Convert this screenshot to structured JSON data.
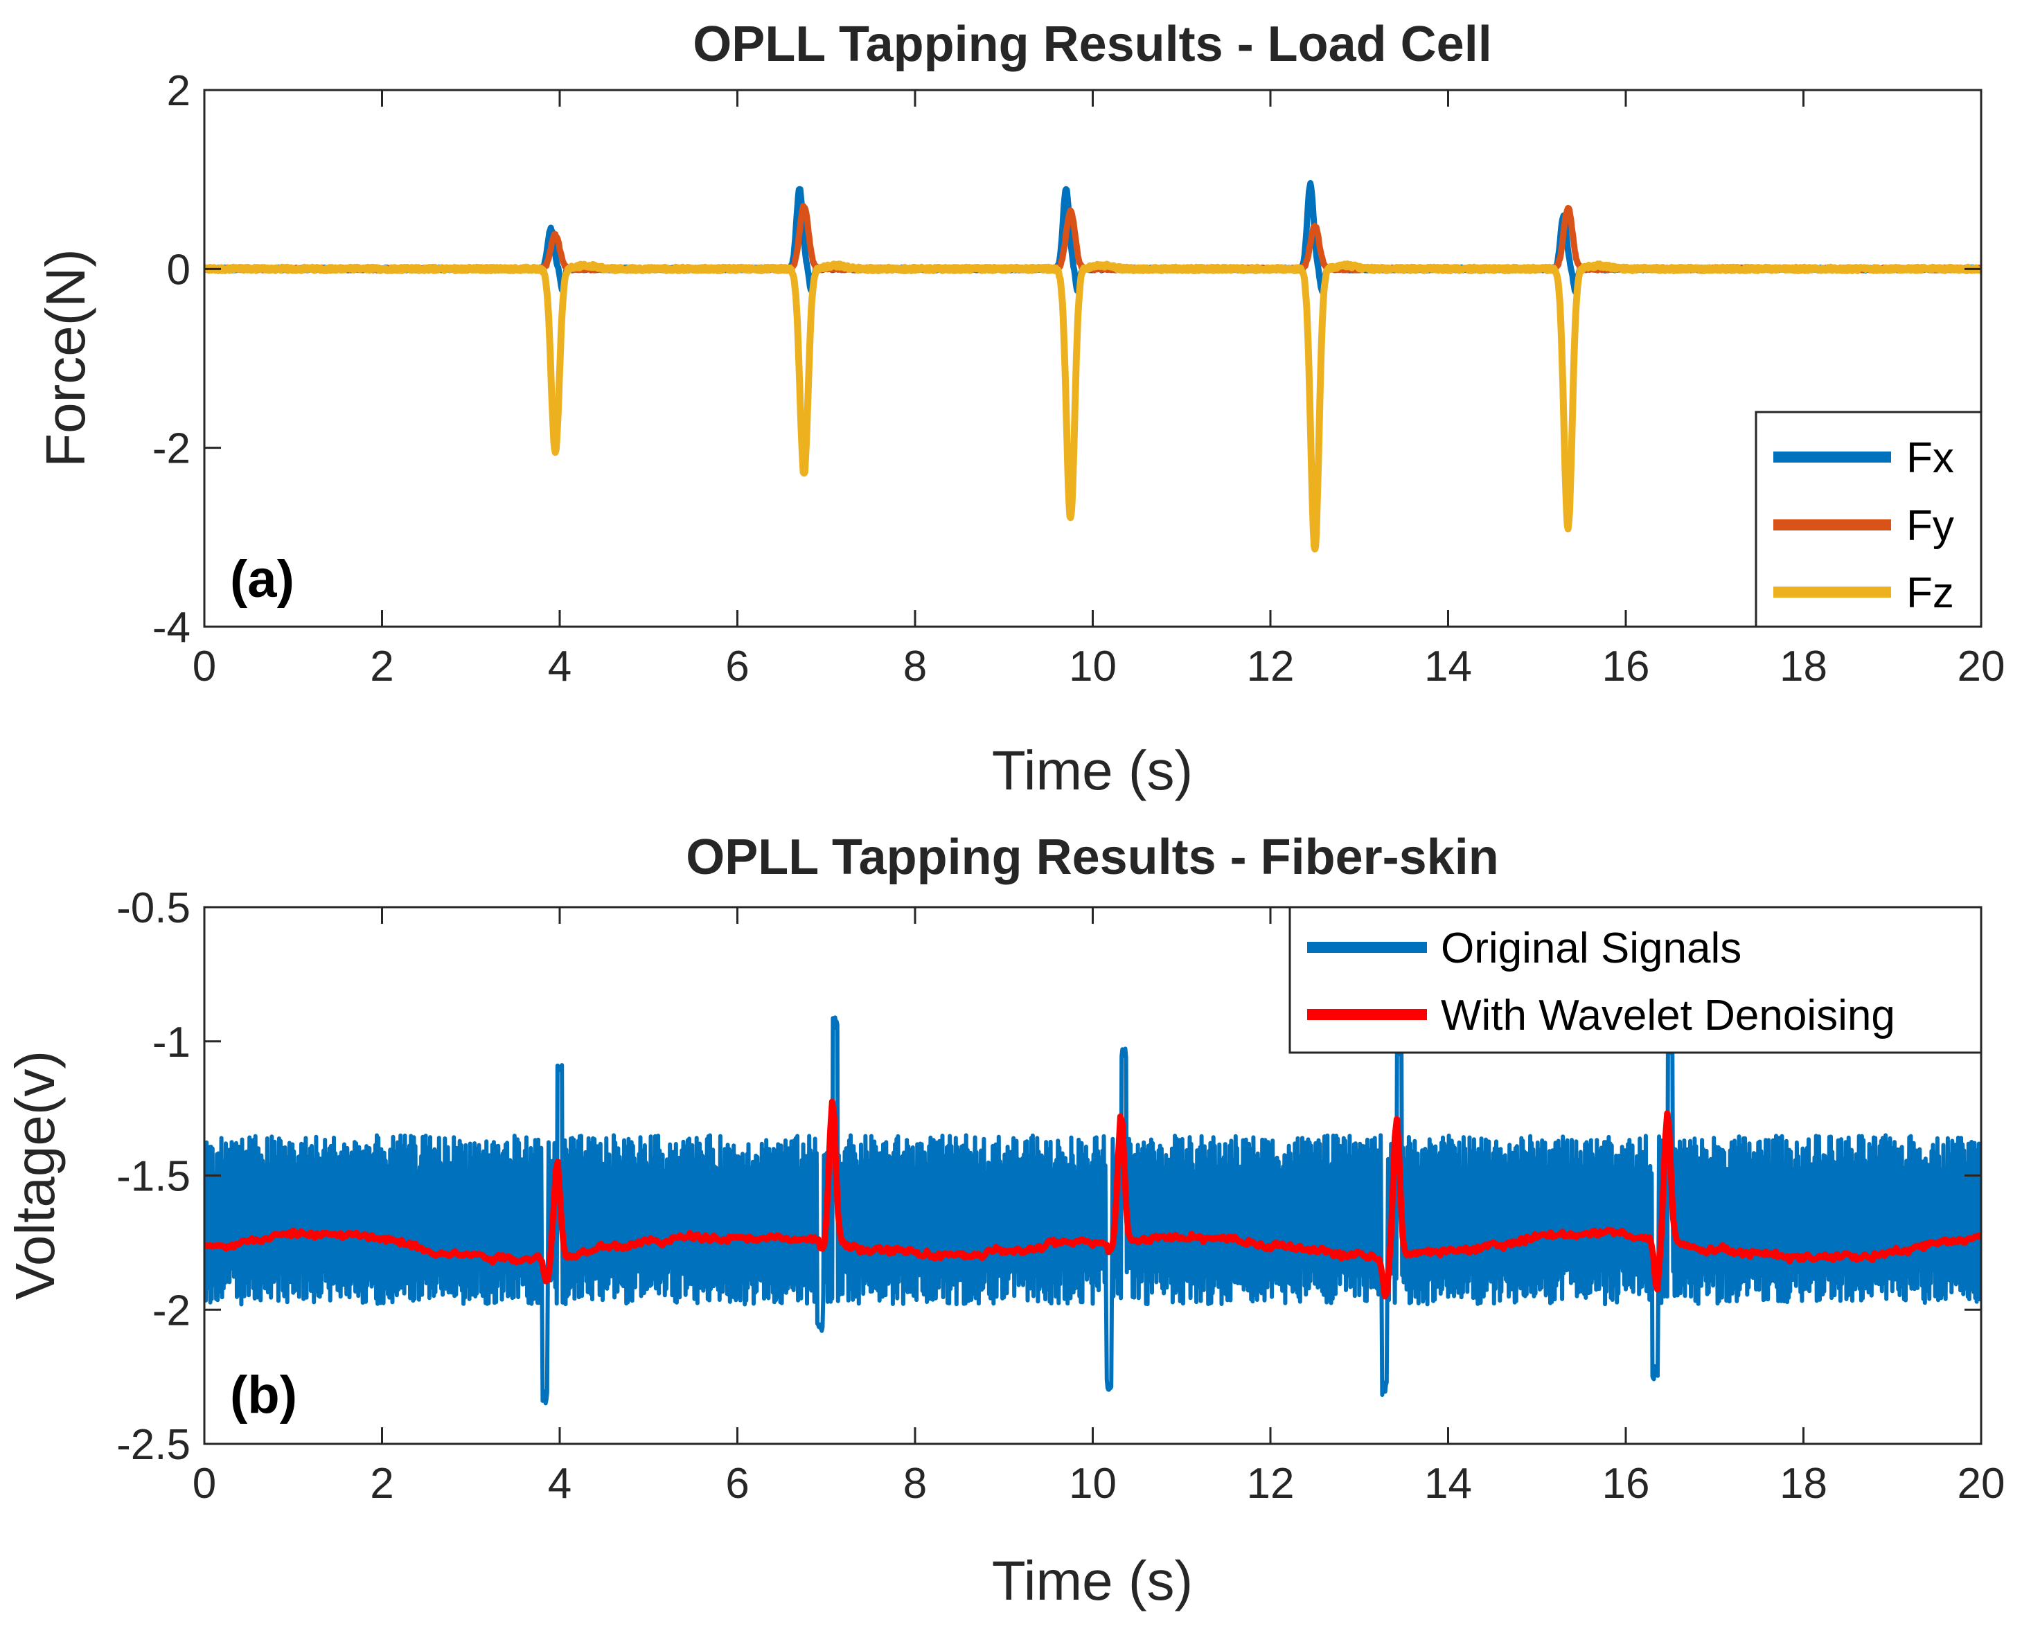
{
  "chart_data": [
    {
      "type": "line",
      "panel_label": "(a)",
      "title": "OPLL Tapping Results - Load Cell",
      "xlabel": "Time (s)",
      "ylabel": "Force(N)",
      "xlim": [
        0,
        20
      ],
      "ylim": [
        -4,
        2
      ],
      "xticks": [
        0,
        2,
        4,
        6,
        8,
        10,
        12,
        14,
        16,
        18,
        20
      ],
      "yticks": [
        -4,
        -2,
        0,
        2
      ],
      "xtick_labels": [
        "0",
        "2",
        "4",
        "6",
        "8",
        "10",
        "12",
        "14",
        "16",
        "18",
        "20"
      ],
      "ytick_labels": [
        "-4",
        "-2",
        "0",
        "2"
      ],
      "legend_position": "bottom-right",
      "tap_times": [
        3.95,
        6.75,
        9.75,
        12.5,
        15.35
      ],
      "series": [
        {
          "name": "Fx",
          "color": "#0072BD",
          "baseline": 0.0,
          "peak_values": [
            0.45,
            0.9,
            0.9,
            0.95,
            0.6
          ]
        },
        {
          "name": "Fy",
          "color": "#D95319",
          "baseline": 0.0,
          "peak_values": [
            0.38,
            0.7,
            0.65,
            0.48,
            0.68
          ]
        },
        {
          "name": "Fz",
          "color": "#EDB120",
          "baseline": 0.0,
          "peak_values": [
            -2.05,
            -2.3,
            -2.8,
            -3.15,
            -2.9
          ]
        }
      ]
    },
    {
      "type": "line",
      "panel_label": "(b)",
      "title": "OPLL Tapping Results - Fiber-skin",
      "xlabel": "Time (s)",
      "ylabel": "Voltage(v)",
      "xlim": [
        0,
        20
      ],
      "ylim": [
        -2.5,
        -0.5
      ],
      "xticks": [
        0,
        2,
        4,
        6,
        8,
        10,
        12,
        14,
        16,
        18,
        20
      ],
      "yticks": [
        -2.5,
        -2,
        -1.5,
        -1,
        -0.5
      ],
      "xtick_labels": [
        "0",
        "2",
        "4",
        "6",
        "8",
        "10",
        "12",
        "14",
        "16",
        "18",
        "20"
      ],
      "ytick_labels": [
        "-2.5",
        "-2",
        "-1.5",
        "-1",
        "-0.5"
      ],
      "legend_position": "top-right",
      "tap_times": [
        3.95,
        7.05,
        10.3,
        13.4,
        16.45
      ],
      "series": [
        {
          "name": "Original Signals",
          "color": "#0072BD",
          "band": [
            -1.98,
            -1.35
          ],
          "spike_max": [
            -1.13,
            -0.95,
            -1.07,
            -1.05,
            -1.05
          ],
          "spike_min": [
            -2.35,
            -2.08,
            -2.3,
            -2.32,
            -2.26
          ]
        },
        {
          "name": "With Wavelet Denoising",
          "color": "#FF0000",
          "mean": -1.76,
          "spike_max": [
            -1.4,
            -1.23,
            -1.28,
            -1.25,
            -1.28
          ],
          "spike_min": [
            -1.85,
            -1.8,
            -1.8,
            -1.9,
            -1.95
          ]
        }
      ]
    }
  ]
}
